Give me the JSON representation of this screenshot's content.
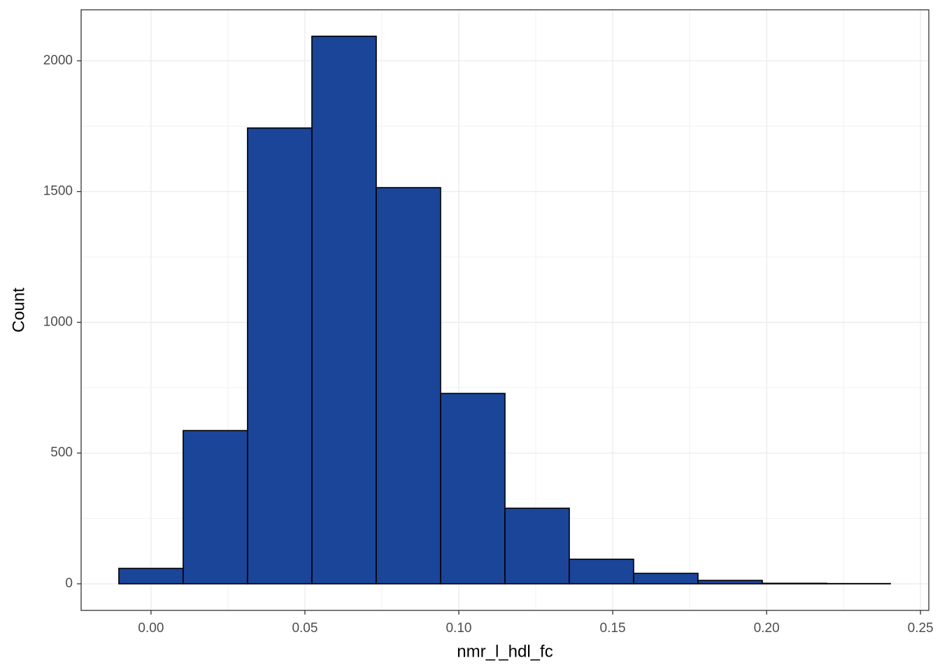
{
  "chart_data": {
    "type": "histogram",
    "x_label": "nmr_l_hdl_fc",
    "y_label": "Count",
    "bins": [
      -0.01045,
      0.01045,
      0.03136,
      0.05227,
      0.07318,
      0.09409,
      0.115,
      0.1359,
      0.1568,
      0.1777,
      0.1986,
      0.2195,
      0.2402
    ],
    "values": [
      59,
      586,
      1743,
      2094,
      1515,
      728,
      289,
      94,
      40,
      13,
      2,
      1
    ],
    "color": "#1a4599",
    "xlim": [
      -0.0227,
      0.2527
    ],
    "ylim": [
      -101.7,
      2195
    ],
    "xticks": [
      {
        "value": 0,
        "label": "0.00"
      },
      0.05,
      {
        "value": 0.1,
        "label": "0.10"
      },
      0.15,
      {
        "value": 0.2,
        "label": "0.20"
      },
      0.25
    ],
    "yticks": [
      0,
      500,
      1000,
      1500,
      2000
    ],
    "grid": true
  }
}
